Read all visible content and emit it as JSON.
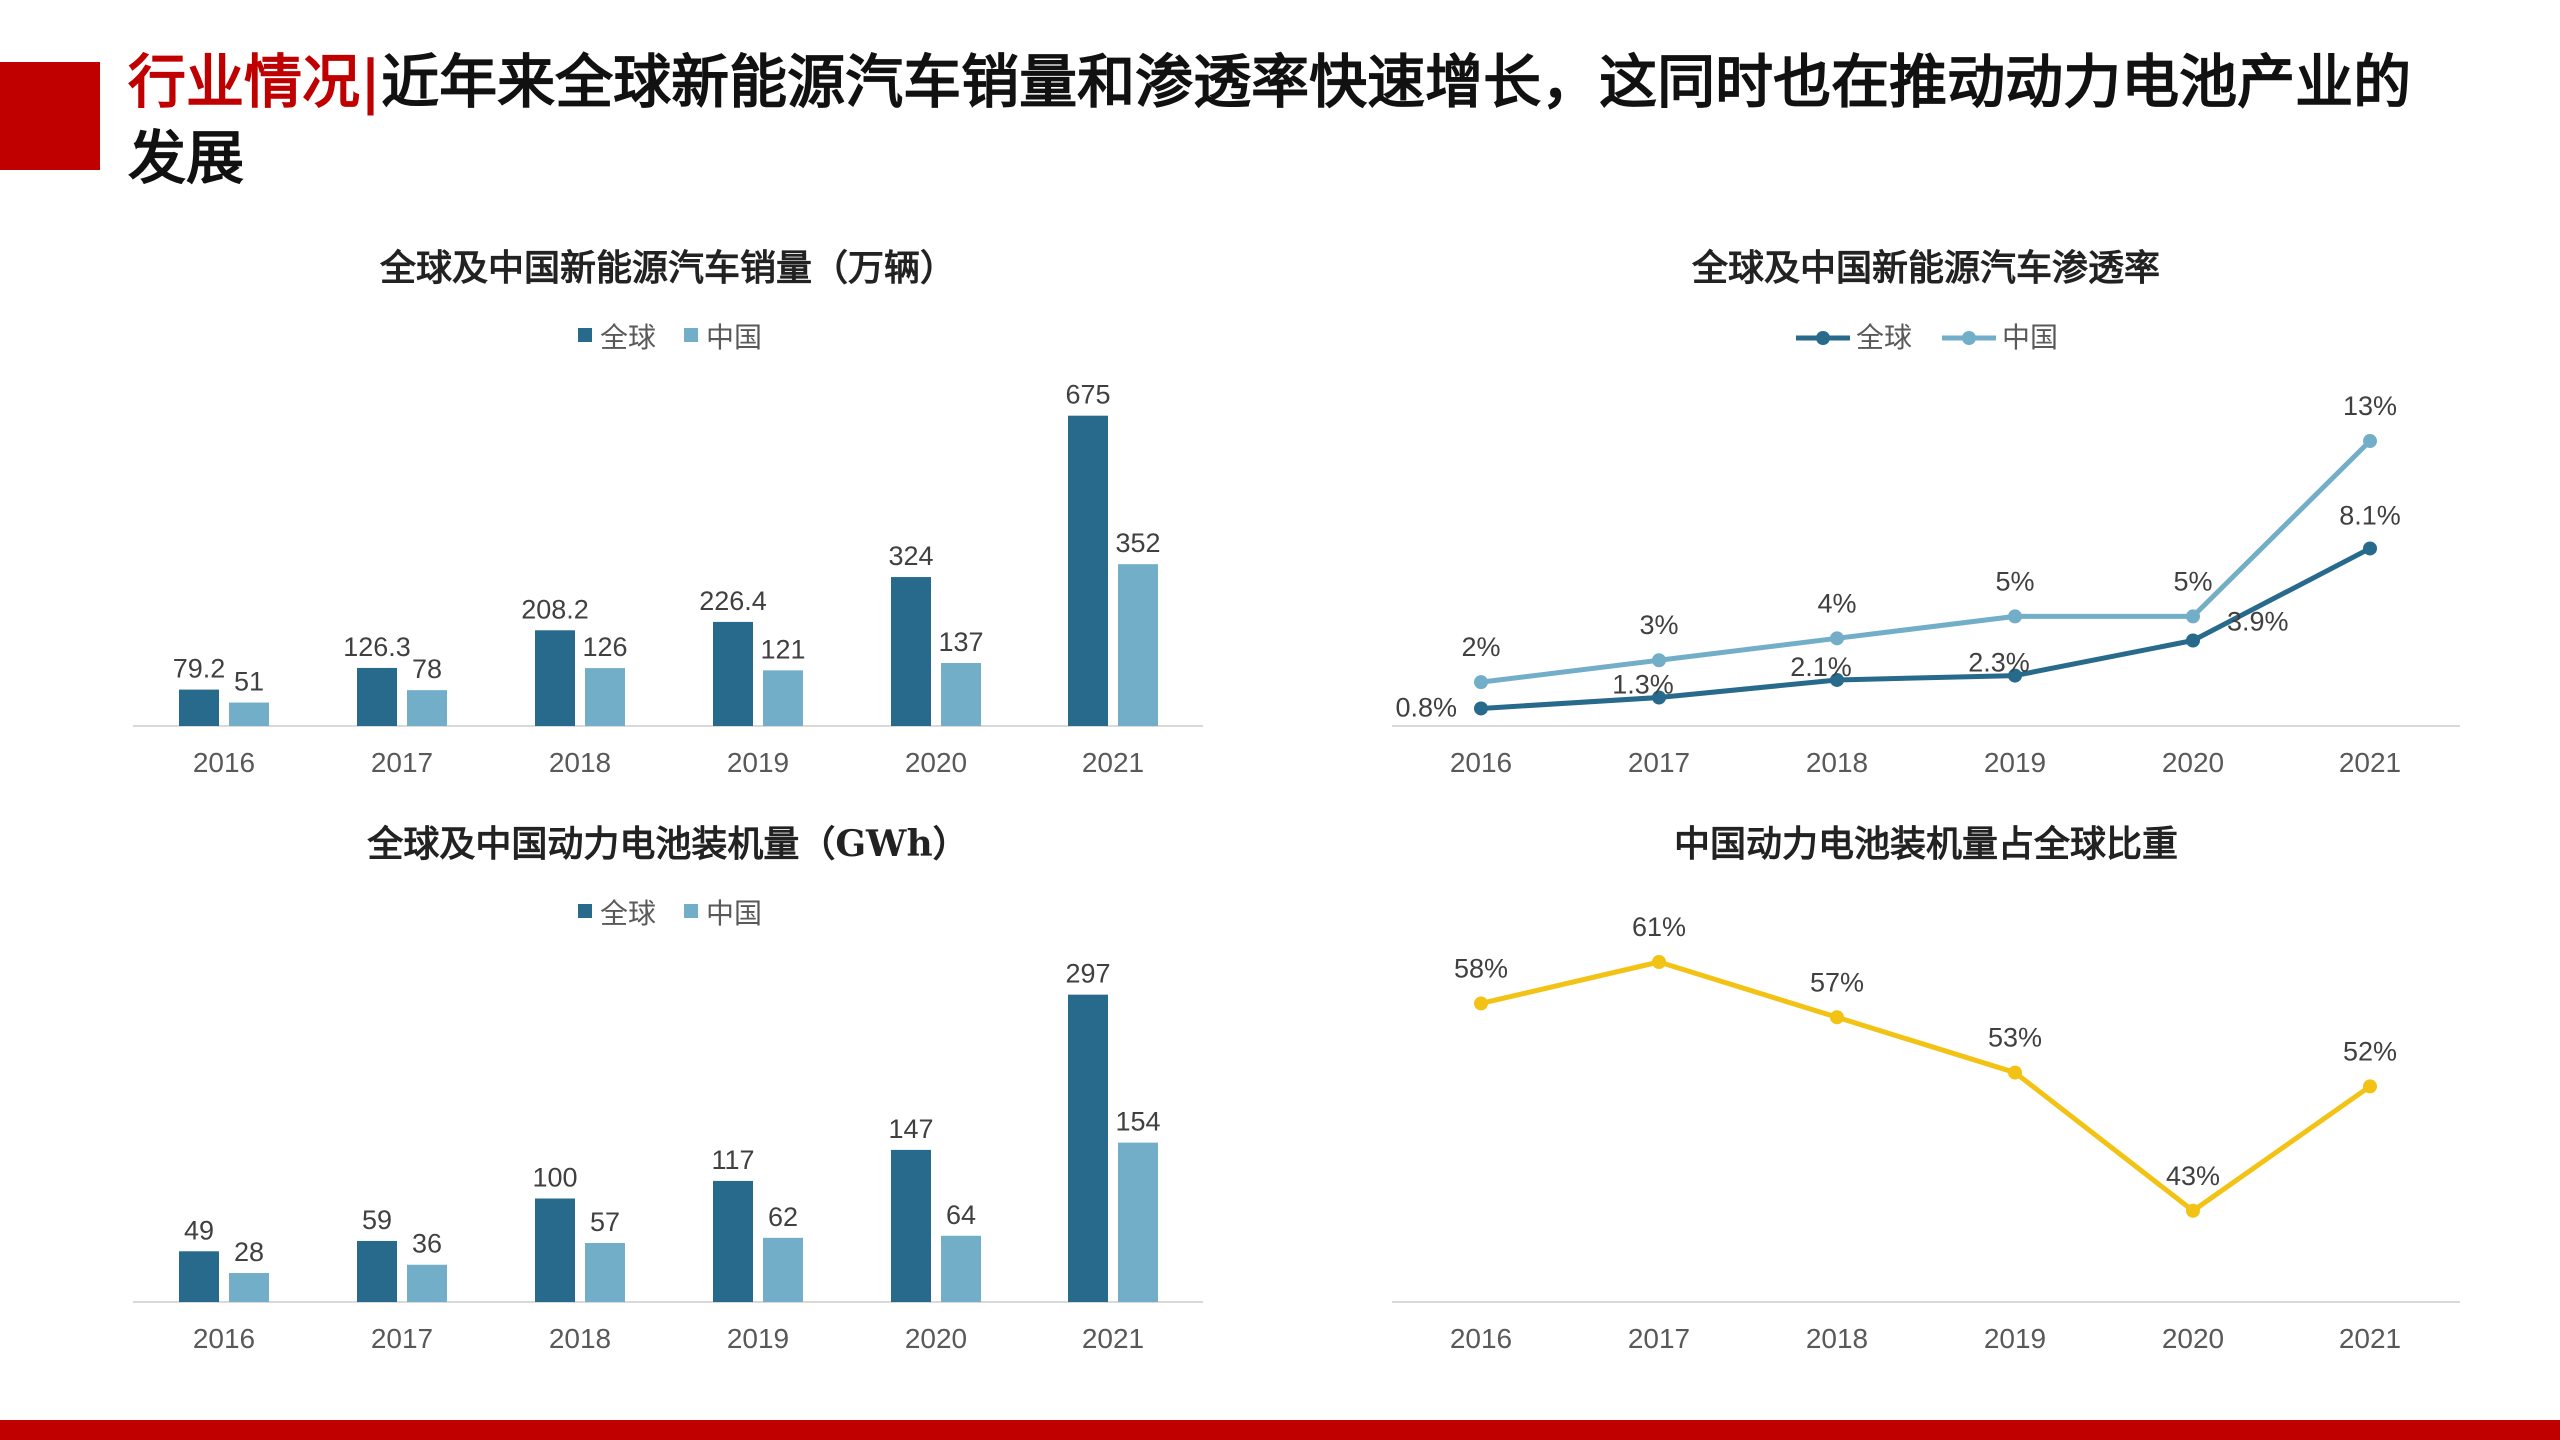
{
  "page": {
    "title_prefix": "行业情况",
    "title_separator": "|",
    "title_text": "近年来全球新能源汽车销量和渗透率快速增长，这同时也在推动动力电池产业的发展"
  },
  "colors": {
    "accent_red": "#c00000",
    "global_dark": "#276a8c",
    "china_light": "#73aec8",
    "share_yellow": "#f2c314",
    "axis": "#d9d9d9"
  },
  "chart_data": [
    {
      "type": "bar",
      "title": "全球及中国新能源汽车销量（万辆）",
      "categories": [
        "2016",
        "2017",
        "2018",
        "2019",
        "2020",
        "2021"
      ],
      "series": [
        {
          "name": "全球",
          "values": [
            79.2,
            126.3,
            208.2,
            226.4,
            324,
            675
          ],
          "labels": [
            "79.2",
            "126.3",
            "208.2",
            "226.4",
            "324",
            "675"
          ]
        },
        {
          "name": "中国",
          "values": [
            51,
            78,
            126,
            121,
            137,
            352
          ],
          "labels": [
            "51",
            "78",
            "126",
            "121",
            "137",
            "352"
          ]
        }
      ],
      "ylim": [
        0,
        720
      ],
      "legend": "top-center",
      "grid": false
    },
    {
      "type": "line",
      "title": "全球及中国新能源汽车渗透率",
      "categories": [
        "2016",
        "2017",
        "2018",
        "2019",
        "2020",
        "2021"
      ],
      "series": [
        {
          "name": "全球",
          "values": [
            0.8,
            1.3,
            2.1,
            2.3,
            3.9,
            8.1
          ],
          "labels": [
            "0.8%",
            "1.3%",
            "2.1%",
            "2.3%",
            "3.9%",
            "8.1%"
          ]
        },
        {
          "name": "中国",
          "values": [
            2,
            3,
            4,
            5,
            5,
            13
          ],
          "labels": [
            "2%",
            "3%",
            "4%",
            "5%",
            "5%",
            "13%"
          ]
        }
      ],
      "ylim": [
        0,
        15.1
      ],
      "legend": "top-center",
      "grid": false
    },
    {
      "type": "bar",
      "title": "全球及中国动力电池装机量（GWh）",
      "categories": [
        "2016",
        "2017",
        "2018",
        "2019",
        "2020",
        "2021"
      ],
      "series": [
        {
          "name": "全球",
          "values": [
            49,
            59,
            100,
            117,
            147,
            297
          ],
          "labels": [
            "49",
            "59",
            "100",
            "117",
            "147",
            "297"
          ]
        },
        {
          "name": "中国",
          "values": [
            28,
            36,
            57,
            62,
            64,
            154
          ],
          "labels": [
            "28",
            "36",
            "57",
            "62",
            "64",
            "154"
          ]
        }
      ],
      "ylim": [
        0,
        316
      ],
      "legend": "top-center",
      "grid": false
    },
    {
      "type": "line",
      "title": "中国动力电池装机量占全球比重",
      "categories": [
        "2016",
        "2017",
        "2018",
        "2019",
        "2020",
        "2021"
      ],
      "series": [
        {
          "values": [
            58,
            61,
            57,
            53,
            43,
            52
          ],
          "labels": [
            "58%",
            "61%",
            "57%",
            "53%",
            "43%",
            "52%"
          ]
        }
      ],
      "ylim": [
        36.4,
        64.4
      ],
      "legend": "none",
      "grid": false
    }
  ]
}
